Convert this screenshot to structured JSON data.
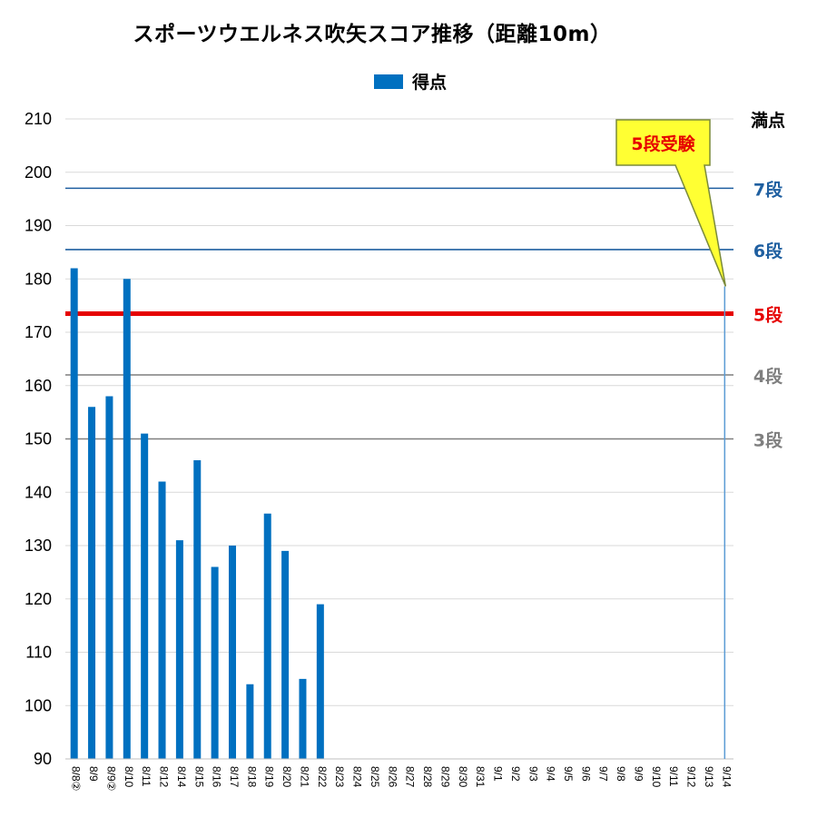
{
  "chart_data": {
    "type": "bar",
    "title": "スポーツウエルネス吹矢スコア推移（距離10m）",
    "xlabel": "",
    "ylabel": "",
    "ylim": [
      90,
      210
    ],
    "yticks": [
      210,
      200,
      190,
      180,
      170,
      160,
      150,
      140,
      130,
      120,
      110,
      100,
      90
    ],
    "grid": true,
    "legend": "top-center",
    "categories": [
      "8/8②",
      "8/9",
      "8/9②",
      "8/10",
      "8/11",
      "8/12",
      "8/14",
      "8/15",
      "8/16",
      "8/17",
      "8/18",
      "8/19",
      "8/20",
      "8/21",
      "8/22",
      "8/23",
      "8/24",
      "8/25",
      "8/26",
      "8/27",
      "8/28",
      "8/29",
      "8/30",
      "8/31",
      "9/1",
      "9/2",
      "9/3",
      "9/4",
      "9/5",
      "9/6",
      "9/7",
      "9/8",
      "9/9",
      "9/10",
      "9/11",
      "9/12",
      "9/13",
      "9/14"
    ],
    "series": [
      {
        "name": "得点",
        "color": "#0070C0",
        "values": [
          182,
          156,
          158,
          180,
          151,
          142,
          131,
          146,
          126,
          130,
          104,
          136,
          129,
          105,
          119,
          null,
          null,
          null,
          null,
          null,
          null,
          null,
          null,
          null,
          null,
          null,
          null,
          null,
          null,
          null,
          null,
          null,
          null,
          null,
          null,
          null,
          null,
          null
        ]
      }
    ],
    "reference_lines": [
      {
        "label": "満点",
        "value": 210,
        "color": "#000000",
        "line": false
      },
      {
        "label": "7段",
        "value": 197,
        "color": "#1F5FA0",
        "line": true
      },
      {
        "label": "6段",
        "value": 185.5,
        "color": "#1F5FA0",
        "line": true
      },
      {
        "label": "5段",
        "value": 173.5,
        "color": "#E60000",
        "line": true
      },
      {
        "label": "4段",
        "value": 162,
        "color": "#7F7F7F",
        "line": true
      },
      {
        "label": "3段",
        "value": 150,
        "color": "#7F7F7F",
        "line": true
      }
    ],
    "exam_marker": {
      "category": "9/14",
      "label": "5段受験",
      "label_color": "#E60000",
      "callout_fill": "#FFFF33",
      "line_color": "#5B9BD5"
    }
  }
}
